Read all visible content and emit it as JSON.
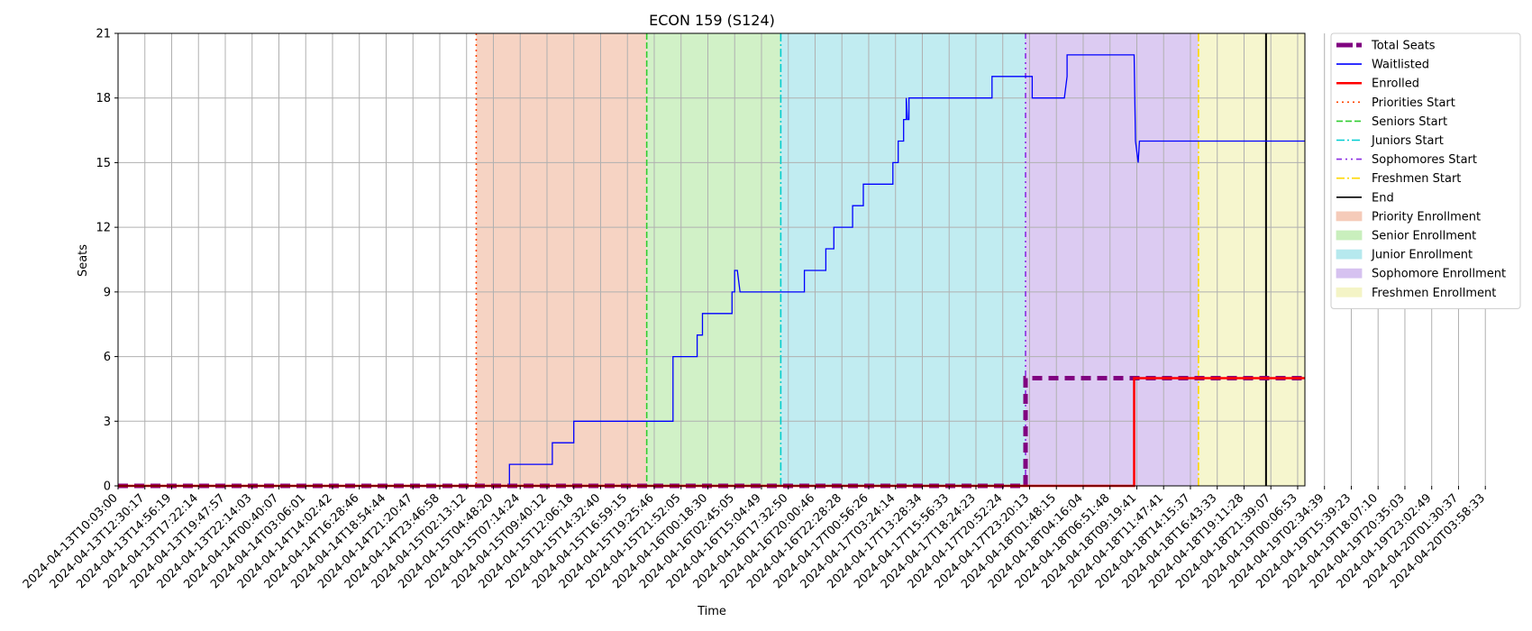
{
  "chart_data": {
    "type": "line",
    "title": "ECON 159 (S124)",
    "xlabel": "Time",
    "ylabel": "Seats",
    "ylim": [
      0,
      21
    ],
    "yticks": [
      0,
      3,
      6,
      9,
      12,
      15,
      18,
      21
    ],
    "xlim": [
      "2024-04-13T10:03:00",
      "2024-04-20T04:27:47"
    ],
    "xticks": [
      "2024-04-13T10:03:00",
      "2024-04-13T12:30:17",
      "2024-04-13T14:56:19",
      "2024-04-13T17:22:14",
      "2024-04-13T19:47:57",
      "2024-04-13T22:14:03",
      "2024-04-14T00:40:07",
      "2024-04-14T03:06:01",
      "2024-04-14T14:02:42",
      "2024-04-14T16:28:46",
      "2024-04-14T18:54:44",
      "2024-04-14T21:20:47",
      "2024-04-14T23:46:58",
      "2024-04-15T02:13:12",
      "2024-04-15T04:48:20",
      "2024-04-15T07:14:24",
      "2024-04-15T09:40:12",
      "2024-04-15T12:06:18",
      "2024-04-15T14:32:40",
      "2024-04-15T16:59:15",
      "2024-04-15T19:25:46",
      "2024-04-15T21:52:05",
      "2024-04-16T00:18:30",
      "2024-04-16T02:45:05",
      "2024-04-16T15:04:49",
      "2024-04-16T17:32:50",
      "2024-04-16T20:00:46",
      "2024-04-16T22:28:28",
      "2024-04-17T00:56:26",
      "2024-04-17T03:24:14",
      "2024-04-17T13:28:34",
      "2024-04-17T15:56:33",
      "2024-04-17T18:24:23",
      "2024-04-17T20:52:24",
      "2024-04-17T23:20:13",
      "2024-04-18T01:48:15",
      "2024-04-18T04:16:04",
      "2024-04-18T06:51:48",
      "2024-04-18T09:19:41",
      "2024-04-18T11:47:41",
      "2024-04-18T14:15:37",
      "2024-04-18T16:43:33",
      "2024-04-18T19:11:28",
      "2024-04-18T21:39:07",
      "2024-04-19T00:06:53",
      "2024-04-19T02:34:39",
      "2024-04-19T15:39:23",
      "2024-04-19T18:07:10",
      "2024-04-19T20:35:03",
      "2024-04-19T23:02:49",
      "2024-04-20T01:30:37",
      "2024-04-20T03:58:33"
    ],
    "grid": true,
    "legend_position": "outside-right-top",
    "series": [
      {
        "name": "Total Seats",
        "color": "#800080",
        "style": "dashed-thick",
        "points": [
          [
            0,
            0
          ],
          [
            33.85,
            0
          ],
          [
            33.85,
            5
          ],
          [
            44.27,
            5
          ]
        ]
      },
      {
        "name": "Waitlisted",
        "color": "#0000ff",
        "style": "solid",
        "points": [
          [
            0,
            0
          ],
          [
            14.6,
            0
          ],
          [
            14.6,
            1
          ],
          [
            16.2,
            1
          ],
          [
            16.2,
            2
          ],
          [
            17.0,
            2
          ],
          [
            17.0,
            3
          ],
          [
            20.7,
            3
          ],
          [
            20.7,
            6
          ],
          [
            21.6,
            6
          ],
          [
            21.6,
            7
          ],
          [
            21.8,
            7
          ],
          [
            21.8,
            8
          ],
          [
            22.9,
            8
          ],
          [
            22.9,
            9
          ],
          [
            23.0,
            9
          ],
          [
            23.0,
            10
          ],
          [
            23.1,
            10
          ],
          [
            23.2,
            9
          ],
          [
            25.6,
            9
          ],
          [
            25.6,
            10
          ],
          [
            26.4,
            10
          ],
          [
            26.4,
            11
          ],
          [
            26.7,
            11
          ],
          [
            26.7,
            12
          ],
          [
            27.4,
            12
          ],
          [
            27.4,
            13
          ],
          [
            27.8,
            13
          ],
          [
            27.8,
            14
          ],
          [
            28.9,
            14
          ],
          [
            28.9,
            15
          ],
          [
            29.1,
            15
          ],
          [
            29.1,
            16
          ],
          [
            29.3,
            16
          ],
          [
            29.3,
            17
          ],
          [
            29.4,
            17
          ],
          [
            29.4,
            18
          ],
          [
            29.45,
            17
          ],
          [
            29.5,
            17
          ],
          [
            29.5,
            18
          ],
          [
            32.6,
            18
          ],
          [
            32.6,
            19
          ],
          [
            34.1,
            19
          ],
          [
            34.1,
            18
          ],
          [
            35.3,
            18
          ],
          [
            35.4,
            19
          ],
          [
            35.4,
            20
          ],
          [
            37.9,
            20
          ],
          [
            37.95,
            16
          ],
          [
            38.05,
            15
          ],
          [
            38.1,
            16
          ],
          [
            44.27,
            16
          ]
        ]
      },
      {
        "name": "Enrolled",
        "color": "#ff0000",
        "style": "solid-thick",
        "points": [
          [
            0,
            0
          ],
          [
            37.9,
            0
          ],
          [
            37.9,
            5
          ],
          [
            44.27,
            5
          ]
        ]
      }
    ],
    "markers": [
      {
        "name": "Priorities Start",
        "x": 13.36,
        "color": "#ff4500",
        "style": "dotted"
      },
      {
        "name": "Seniors Start",
        "x": 19.72,
        "color": "#32cd32",
        "style": "dashed"
      },
      {
        "name": "Juniors Start",
        "x": 24.72,
        "color": "#00ced1",
        "style": "dashdot"
      },
      {
        "name": "Sophomores Start",
        "x": 33.85,
        "color": "#8a2be2",
        "style": "dashdotdot"
      },
      {
        "name": "Freshmen Start",
        "x": 40.3,
        "color": "#ffd700",
        "style": "dashdot"
      },
      {
        "name": "End",
        "x": 42.82,
        "color": "#000000",
        "style": "solid"
      }
    ],
    "bands": [
      {
        "name": "Priority Enrollment",
        "from": 13.36,
        "to": 19.72,
        "color": "#f5cbb9"
      },
      {
        "name": "Senior Enrollment",
        "from": 19.72,
        "to": 24.72,
        "color": "#c9efbd"
      },
      {
        "name": "Junior Enrollment",
        "from": 24.72,
        "to": 33.85,
        "color": "#b6e9ee"
      },
      {
        "name": "Sophomore Enrollment",
        "from": 33.85,
        "to": 40.3,
        "color": "#d6c2f0"
      },
      {
        "name": "Freshmen Enrollment",
        "from": 40.3,
        "to": 44.27,
        "color": "#f4f4c6"
      }
    ]
  }
}
